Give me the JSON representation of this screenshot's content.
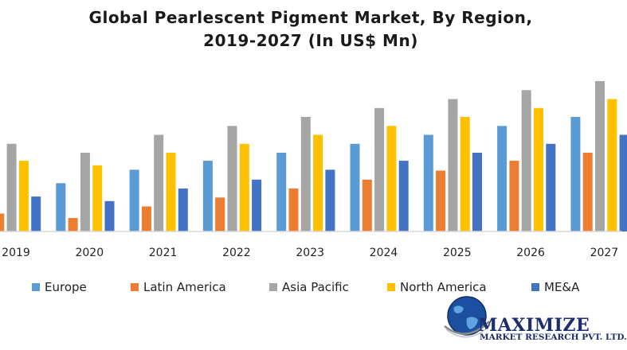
{
  "title_lines": [
    "Global Pearlescent Pigment Market, By Region,",
    "2019-2027 (In US$ Mn)"
  ],
  "colors": {
    "Europe": "#5B9BD5",
    "Latin America": "#ED7D31",
    "Asia Pacific": "#A5A5A5",
    "North America": "#FFC000",
    "ME&A": "#4472C4",
    "axis": "#d9d9d9",
    "logo": "#1c2f6b"
  },
  "chart_data": {
    "type": "bar",
    "title": "Global Pearlescent Pigment Market, By Region, 2019-2027 (In US$ Mn)",
    "categories": [
      "2019",
      "2020",
      "2021",
      "2022",
      "2023",
      "2024",
      "2025",
      "2026",
      "2027"
    ],
    "series": [
      {
        "name": "Europe",
        "values": [
          null,
          54,
          69,
          79,
          88,
          98,
          108,
          118,
          128
        ]
      },
      {
        "name": "Latin America",
        "values": [
          20,
          15,
          28,
          38,
          48,
          58,
          68,
          79,
          88
        ]
      },
      {
        "name": "Asia Pacific",
        "values": [
          98,
          88,
          108,
          118,
          128,
          138,
          148,
          158,
          168
        ]
      },
      {
        "name": "North America",
        "values": [
          79,
          74,
          88,
          98,
          108,
          118,
          128,
          138,
          148
        ]
      },
      {
        "name": "ME&A",
        "values": [
          39,
          34,
          48,
          58,
          69,
          79,
          88,
          98,
          108
        ]
      }
    ],
    "legend_position": "bottom",
    "gridlines": false,
    "ylim": [
      0,
      175
    ]
  },
  "logo": {
    "line1": "MAXIMIZE",
    "line2": "MARKET RESEARCH PVT. LTD."
  }
}
